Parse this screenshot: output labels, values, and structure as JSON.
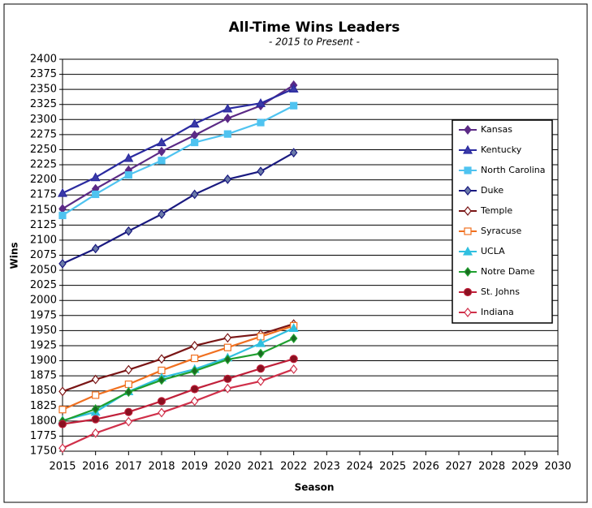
{
  "chart_data": {
    "type": "line",
    "title": "All-Time Wins Leaders",
    "subtitle": "- 2015 to Present -",
    "x_label": "Season",
    "y_label": "Wins",
    "x": [
      2015,
      2016,
      2017,
      2018,
      2019,
      2020,
      2021,
      2022
    ],
    "xlim": [
      2015,
      2030
    ],
    "xticks": [
      2015,
      2016,
      2017,
      2018,
      2019,
      2020,
      2021,
      2022,
      2023,
      2024,
      2025,
      2026,
      2027,
      2028,
      2029,
      2030
    ],
    "ylim": [
      1750,
      2400
    ],
    "yticks": [
      1750,
      1775,
      1800,
      1825,
      1850,
      1875,
      1900,
      1925,
      1950,
      1975,
      2000,
      2025,
      2050,
      2075,
      2100,
      2125,
      2150,
      2175,
      2200,
      2225,
      2250,
      2275,
      2300,
      2325,
      2350,
      2375,
      2400
    ],
    "grid": true,
    "legend": "right",
    "series": [
      {
        "name": "Kansas",
        "color": "#5b2a86",
        "marker": "diamond",
        "marker_fill": "#5b2a86",
        "values": [
          2152,
          2185,
          2216,
          2247,
          2274,
          2302,
          2323,
          2357
        ]
      },
      {
        "name": "Kentucky",
        "color": "#2b2ba0",
        "marker": "triangle",
        "marker_fill": "#3a3aa8",
        "values": [
          2178,
          2204,
          2236,
          2262,
          2293,
          2318,
          2327,
          2351
        ]
      },
      {
        "name": "North Carolina",
        "color": "#4fc3f0",
        "marker": "square",
        "marker_fill": "#4fc3f0",
        "values": [
          2141,
          2176,
          2208,
          2232,
          2262,
          2276,
          2295,
          2323
        ]
      },
      {
        "name": "Duke",
        "color": "#1a1a80",
        "marker": "diamond",
        "marker_fill": "#6a7aa8",
        "values": [
          2061,
          2086,
          2115,
          2143,
          2176,
          2201,
          2214,
          2245
        ]
      },
      {
        "name": "Temple",
        "color": "#7a1616",
        "marker": "diamond",
        "marker_fill": "#ffffff",
        "values": [
          1849,
          1869,
          1885,
          1903,
          1925,
          1938,
          1944,
          1961
        ]
      },
      {
        "name": "Syracuse",
        "color": "#f07020",
        "marker": "square",
        "marker_fill": "#ffffff",
        "values": [
          1819,
          1843,
          1861,
          1884,
          1904,
          1922,
          1940,
          1958
        ]
      },
      {
        "name": "UCLA",
        "color": "#30c0e0",
        "marker": "triangle",
        "marker_fill": "#30c0e0",
        "values": [
          1801,
          1815,
          1849,
          1872,
          1886,
          1905,
          1929,
          1954
        ]
      },
      {
        "name": "Notre Dame",
        "color": "#20a030",
        "marker": "diamond",
        "marker_fill": "#1a6a20",
        "values": [
          1800,
          1820,
          1848,
          1868,
          1883,
          1902,
          1912,
          1937
        ]
      },
      {
        "name": "St. Johns",
        "color": "#c0203a",
        "marker": "circle",
        "marker_fill": "#8a1020",
        "values": [
          1795,
          1803,
          1815,
          1833,
          1853,
          1870,
          1887,
          1903
        ]
      },
      {
        "name": "Indiana",
        "color": "#d0304a",
        "marker": "diamond",
        "marker_fill": "#ffffff",
        "values": [
          1755,
          1780,
          1799,
          1814,
          1833,
          1854,
          1866,
          1886
        ]
      }
    ]
  }
}
